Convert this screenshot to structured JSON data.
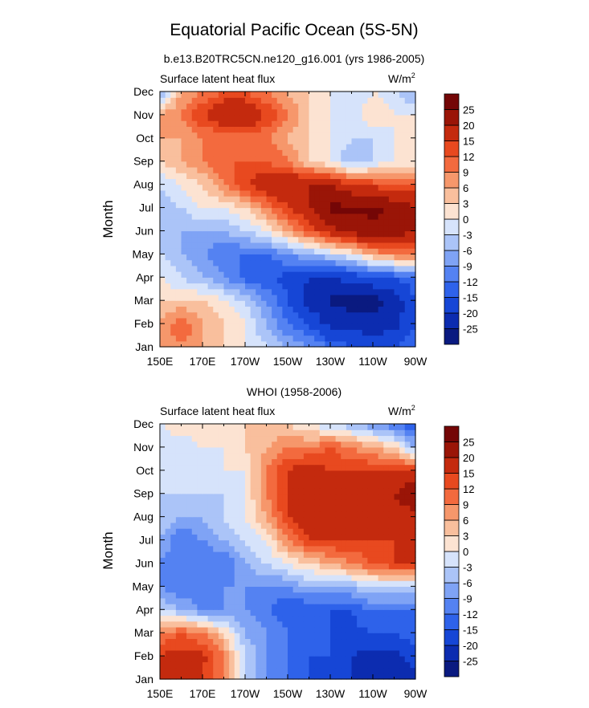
{
  "figure": {
    "title": "Equatorial Pacific Ocean (5S-5N)",
    "subtitle": "b.e13.B20TRC5CN.ne120_g16.001 (yrs 1986-2005)",
    "second_title": "WHOI (1958-2006)"
  },
  "chart_data": [
    {
      "type": "heatmap",
      "label_left": "Surface latent heat flux",
      "units": "W/m",
      "units_sup": "2",
      "ylabel": "Month",
      "xlabel": "",
      "x_tick_labels": [
        "150E",
        "170E",
        "170W",
        "150W",
        "130W",
        "110W",
        "90W"
      ],
      "y_tick_labels": [
        "Jan",
        "Feb",
        "Mar",
        "Apr",
        "May",
        "Jun",
        "Jul",
        "Aug",
        "Sep",
        "Oct",
        "Nov",
        "Dec"
      ],
      "x_lon_range": [
        150,
        270
      ],
      "x": [
        150,
        160,
        170,
        180,
        190,
        200,
        210,
        220,
        230,
        240,
        250,
        260,
        270
      ],
      "y": [
        "Jan",
        "Feb",
        "Mar",
        "Apr",
        "May",
        "Jun",
        "Jul",
        "Aug",
        "Sep",
        "Oct",
        "Nov",
        "Dec"
      ],
      "z": [
        [
          6,
          9,
          6,
          3,
          0,
          -3,
          -6,
          -9,
          -12,
          -15,
          -15,
          -15,
          -12
        ],
        [
          6,
          12,
          6,
          3,
          0,
          -6,
          -12,
          -15,
          -22,
          -22,
          -24,
          -22,
          -15
        ],
        [
          3,
          3,
          3,
          0,
          -3,
          -9,
          -15,
          -22,
          -26,
          -27,
          -27,
          -24,
          -15
        ],
        [
          0,
          -3,
          -6,
          -9,
          -13,
          -15,
          -16,
          -20,
          -20,
          -18,
          -16,
          -15,
          -12
        ],
        [
          -3,
          -6,
          -9,
          -12,
          -12,
          -12,
          -9,
          -6,
          -3,
          0,
          6,
          9,
          9
        ],
        [
          -6,
          -6,
          -6,
          -6,
          -3,
          0,
          6,
          12,
          18,
          22,
          24,
          24,
          20
        ],
        [
          -6,
          -3,
          0,
          0,
          3,
          9,
          15,
          20,
          26,
          26,
          26,
          24,
          20
        ],
        [
          -3,
          0,
          3,
          9,
          15,
          18,
          20,
          20,
          20,
          16,
          14,
          12,
          12
        ],
        [
          3,
          6,
          9,
          12,
          12,
          12,
          9,
          3,
          0,
          -6,
          -3,
          0,
          0
        ],
        [
          6,
          6,
          9,
          9,
          9,
          9,
          6,
          3,
          0,
          -3,
          -3,
          0,
          0
        ],
        [
          6,
          9,
          15,
          20,
          21,
          15,
          9,
          3,
          0,
          -3,
          3,
          0,
          0
        ],
        [
          -6,
          6,
          9,
          12,
          12,
          9,
          6,
          3,
          0,
          -3,
          0,
          -3,
          -6
        ]
      ],
      "colorbar": {
        "levels": [
          -25,
          -20,
          -15,
          -12,
          -9,
          -6,
          -3,
          0,
          3,
          6,
          9,
          12,
          15,
          20,
          25
        ],
        "colors": [
          "#0a1a80",
          "#0c2cb0",
          "#1646d6",
          "#2e62ea",
          "#5482f2",
          "#7fa3f5",
          "#abc4f8",
          "#d6e3fb",
          "#fce3d2",
          "#f9bf9d",
          "#f6976b",
          "#f36a3e",
          "#e8491f",
          "#c42a0e",
          "#9a1507",
          "#740606"
        ]
      }
    },
    {
      "type": "heatmap",
      "label_left": "Surface latent heat flux",
      "units": "W/m",
      "units_sup": "2",
      "ylabel": "Month",
      "xlabel": "",
      "x_tick_labels": [
        "150E",
        "170E",
        "170W",
        "150W",
        "130W",
        "110W",
        "90W"
      ],
      "y_tick_labels": [
        "Jan",
        "Feb",
        "Mar",
        "Apr",
        "May",
        "Jun",
        "Jul",
        "Aug",
        "Sep",
        "Oct",
        "Nov",
        "Dec"
      ],
      "x_lon_range": [
        150,
        270
      ],
      "x": [
        150,
        160,
        170,
        180,
        190,
        200,
        210,
        220,
        230,
        240,
        250,
        260,
        270
      ],
      "y": [
        "Jan",
        "Feb",
        "Mar",
        "Apr",
        "May",
        "Jun",
        "Jul",
        "Aug",
        "Sep",
        "Oct",
        "Nov",
        "Dec"
      ],
      "z": [
        [
          15,
          16,
          15,
          9,
          -3,
          -9,
          -12,
          -15,
          -18,
          -20,
          -22,
          -24,
          -22
        ],
        [
          15,
          17,
          16,
          9,
          -3,
          -9,
          -12,
          -15,
          -15,
          -20,
          -22,
          -22,
          -18
        ],
        [
          9,
          12,
          9,
          3,
          -6,
          -9,
          -12,
          -15,
          -15,
          -16,
          -15,
          -15,
          -12
        ],
        [
          -3,
          -6,
          -9,
          -9,
          -9,
          -12,
          -15,
          -15,
          -15,
          -15,
          -12,
          -12,
          -12
        ],
        [
          -9,
          -12,
          -12,
          -9,
          -9,
          -9,
          -9,
          -6,
          -6,
          -6,
          -3,
          -3,
          -3
        ],
        [
          -9,
          -12,
          -12,
          -12,
          -6,
          -3,
          0,
          3,
          6,
          9,
          12,
          15,
          15
        ],
        [
          -6,
          -12,
          -9,
          -6,
          -3,
          0,
          9,
          15,
          15,
          15,
          15,
          15,
          18
        ],
        [
          -3,
          -6,
          -6,
          -3,
          0,
          6,
          15,
          18,
          20,
          18,
          18,
          18,
          18
        ],
        [
          -3,
          -3,
          -3,
          -3,
          0,
          9,
          15,
          20,
          20,
          18,
          18,
          20,
          25
        ],
        [
          -3,
          -3,
          -3,
          0,
          0,
          9,
          15,
          18,
          15,
          15,
          15,
          15,
          15
        ],
        [
          -3,
          -3,
          0,
          0,
          3,
          6,
          9,
          9,
          12,
          9,
          6,
          3,
          -6
        ],
        [
          0,
          3,
          3,
          3,
          3,
          3,
          3,
          0,
          -3,
          -6,
          -9,
          -12,
          -15
        ]
      ],
      "colorbar": {
        "levels": [
          -25,
          -20,
          -15,
          -12,
          -9,
          -6,
          -3,
          0,
          3,
          6,
          9,
          12,
          15,
          20,
          25
        ],
        "colors": [
          "#0a1a80",
          "#0c2cb0",
          "#1646d6",
          "#2e62ea",
          "#5482f2",
          "#7fa3f5",
          "#abc4f8",
          "#d6e3fb",
          "#fce3d2",
          "#f9bf9d",
          "#f6976b",
          "#f36a3e",
          "#e8491f",
          "#c42a0e",
          "#9a1507",
          "#740606"
        ]
      }
    }
  ]
}
